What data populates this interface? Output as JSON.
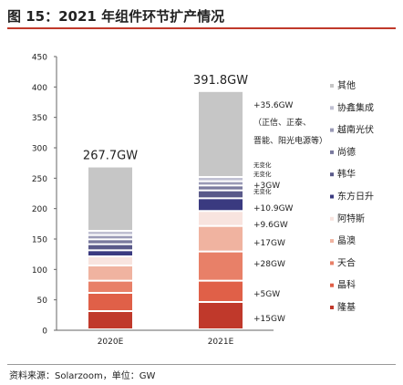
{
  "title": "图 15：2021 年组件环节扩产情况",
  "source": "资料来源：Solarzoom，单位：GW",
  "chart_data": {
    "type": "bar",
    "stacked": true,
    "categories": [
      "2020E",
      "2021E"
    ],
    "ylim": [
      0,
      450
    ],
    "yticks": [
      0,
      50,
      100,
      150,
      200,
      250,
      300,
      350,
      400,
      450
    ],
    "grid": false,
    "legend_position": "right",
    "totals": [
      "267.7GW",
      "391.8GW"
    ],
    "series": [
      {
        "name": "隆基",
        "color": "#c0392b",
        "values": [
          30,
          45
        ]
      },
      {
        "name": "晶科",
        "color": "#e06048",
        "values": [
          30,
          35
        ]
      },
      {
        "name": "天合",
        "color": "#e88068",
        "values": [
          20,
          48
        ]
      },
      {
        "name": "晶澳",
        "color": "#f0b3a0",
        "values": [
          25,
          42
        ]
      },
      {
        "name": "阿特斯",
        "color": "#f8e4df",
        "values": [
          15,
          24.6
        ]
      },
      {
        "name": "东方日升",
        "color": "#3a3a80",
        "values": [
          10,
          20.9
        ]
      },
      {
        "name": "韩华",
        "color": "#5a5a8a",
        "values": [
          10,
          13
        ]
      },
      {
        "name": "尚德",
        "color": "#7a7a9e",
        "values": [
          8,
          8
        ]
      },
      {
        "name": "越南光伏",
        "color": "#9a9ab6",
        "values": [
          7,
          7
        ]
      },
      {
        "name": "协鑫集成",
        "color": "#c0c0d2",
        "values": [
          7,
          7
        ]
      },
      {
        "name": "其他",
        "color": "#c6c6c6",
        "values": [
          105.7,
          141.3
        ]
      }
    ],
    "annotations": [
      {
        "series": "其他",
        "lines": [
          "+35.6GW",
          "（正信、正泰、",
          "晋能、阳光电源等）"
        ]
      },
      {
        "series": "协鑫集成",
        "lines": [
          "无变化"
        ]
      },
      {
        "series": "越南光伏",
        "lines": [
          "无变化"
        ]
      },
      {
        "series": "尚德",
        "lines": [
          "无变化"
        ]
      },
      {
        "series": "韩华",
        "lines": [
          "+3GW"
        ]
      },
      {
        "series": "东方日升",
        "lines": [
          "+10.9GW"
        ]
      },
      {
        "series": "阿特斯",
        "lines": [
          "+9.6GW"
        ]
      },
      {
        "series": "晶澳",
        "lines": [
          "+17GW"
        ]
      },
      {
        "series": "天合",
        "lines": [
          "+28GW"
        ]
      },
      {
        "series": "晶科",
        "lines": [
          "+5GW"
        ]
      },
      {
        "series": "隆基",
        "lines": [
          "+15GW"
        ]
      }
    ]
  }
}
